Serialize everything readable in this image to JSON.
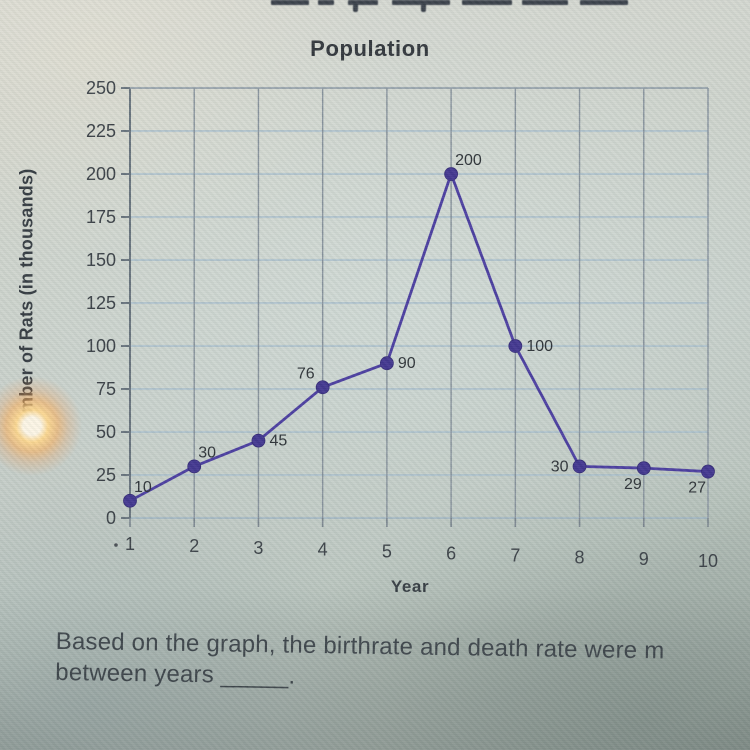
{
  "question": {
    "line1": "Based on the graph, the birthrate and death rate were m",
    "line2": "between years _____."
  },
  "chart_data": {
    "type": "line",
    "title": "Population",
    "xlabel": "Year",
    "ylabel": "Number of Rats (in thousands)",
    "x": [
      1,
      2,
      3,
      4,
      5,
      6,
      7,
      8,
      9,
      10
    ],
    "values": [
      10,
      30,
      45,
      76,
      90,
      200,
      100,
      30,
      29,
      27
    ],
    "point_labels": [
      "10",
      "30",
      "45",
      "76",
      "90",
      "200",
      "100",
      "30",
      "29",
      "27"
    ],
    "label_positions": [
      "above-right",
      "above-right",
      "right",
      "above-left",
      "right",
      "above-right",
      "right",
      "left",
      "below-left",
      "below-left"
    ],
    "xticks": [
      1,
      2,
      3,
      4,
      5,
      6,
      7,
      8,
      9,
      10
    ],
    "yticks": [
      0,
      25,
      50,
      75,
      100,
      125,
      150,
      175,
      200,
      225,
      250
    ],
    "xlim": [
      1,
      10
    ],
    "ylim": [
      0,
      250
    ],
    "grid": true,
    "legend": false,
    "line_color": "#4a3da0",
    "point_color": "#41358f"
  }
}
